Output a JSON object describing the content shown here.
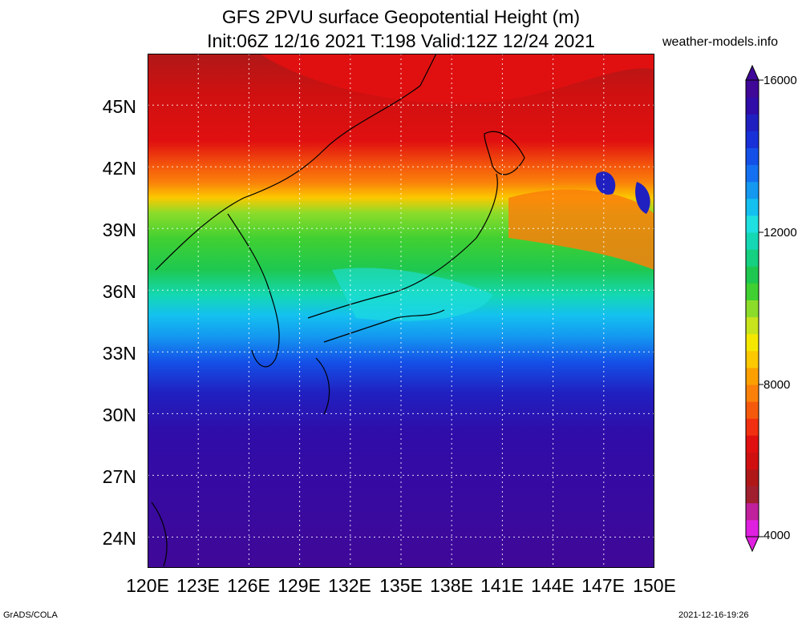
{
  "title": {
    "line1": "GFS 2PVU surface Geopotential Height (m)",
    "line2": "Init:06Z 12/16 2021 T:198 Valid:12Z 12/24 2021"
  },
  "source": "weather-models.info",
  "footer": {
    "left": "GrADS/COLA",
    "right": "2021-12-16-19:26"
  },
  "map": {
    "lon_range": [
      120,
      150
    ],
    "lat_range": [
      22.5,
      47.5
    ],
    "lat_ticks": [
      "45N",
      "42N",
      "39N",
      "36N",
      "33N",
      "30N",
      "27N",
      "24N"
    ],
    "lat_values": [
      45,
      42,
      39,
      36,
      33,
      30,
      27,
      24
    ],
    "lon_ticks": [
      "120E",
      "123E",
      "126E",
      "129E",
      "132E",
      "135E",
      "138E",
      "141E",
      "144E",
      "147E",
      "150E"
    ],
    "lon_values": [
      120,
      123,
      126,
      129,
      132,
      135,
      138,
      141,
      144,
      147,
      150
    ]
  },
  "colorbar": {
    "labels": [
      "16000",
      "12000",
      "8000",
      "4000"
    ],
    "values": [
      16000,
      12000,
      8000,
      4000
    ],
    "colors": [
      "#e020e0",
      "#c0209c",
      "#a02030",
      "#b01818",
      "#d01010",
      "#e01010",
      "#f03010",
      "#f55a0c",
      "#fa800a",
      "#fca000",
      "#fcc800",
      "#f5e800",
      "#c8e41c",
      "#8cdc2a",
      "#40d032",
      "#1ec850",
      "#14d080",
      "#14d8b4",
      "#1ee0e0",
      "#14c0f0",
      "#1498f0",
      "#1470f0",
      "#1450e8",
      "#1830d8",
      "#2020c0",
      "#300ca8",
      "#400898"
    ]
  }
}
